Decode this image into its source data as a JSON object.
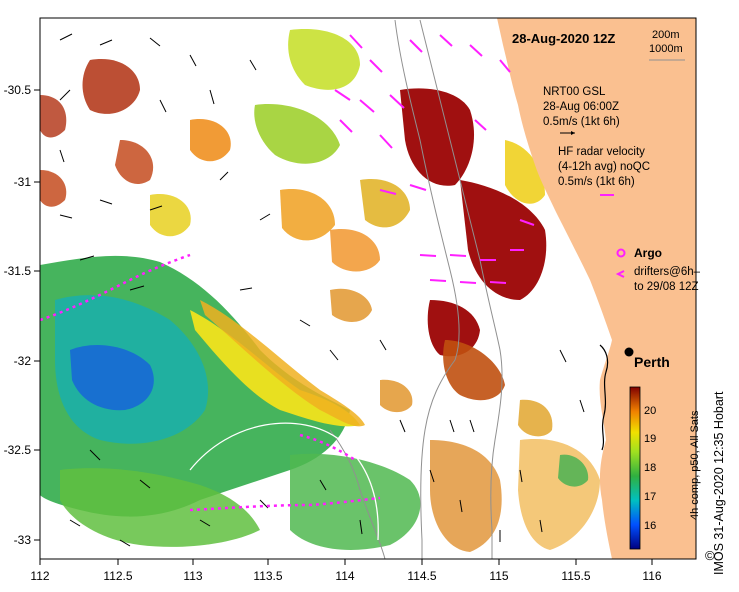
{
  "title": "28-Aug-2020 12Z",
  "depth_contours": [
    "200m",
    "1000m"
  ],
  "gsl_legend": {
    "line1": "NRT00 GSL",
    "line2": "28-Aug 06:00Z",
    "line3": "0.5m/s (1kt 6h)"
  },
  "hf_legend": {
    "line1": "HF radar velocity",
    "line2": "(4-12h avg) noQC",
    "line3": "0.5m/s (1kt 6h)"
  },
  "argo_label": "Argo",
  "drifters_label": {
    "line1": "drifters@6h–",
    "line2": "to 29/08 12Z"
  },
  "city_label": "Perth",
  "colorbar": {
    "ticks": [
      "16",
      "17",
      "18",
      "19",
      "20"
    ],
    "label": "4h comp, p50, All Sats"
  },
  "credit": "IMOS 31-Aug-2020 12:35 Hobart",
  "copyright_symbol": "©",
  "x_axis_labels": [
    "112",
    "112.5",
    "113",
    "113.5",
    "114",
    "114.5",
    "115",
    "115.5",
    "116"
  ],
  "y_axis_labels": [
    "-30.5",
    "-31",
    "-31.5",
    "-32",
    "-32.5",
    "-33"
  ],
  "colors": {
    "land": "#FAC090",
    "ocean": "#ffffff",
    "hf_vectors": "#ff20ff",
    "drifters": "#ff20ff",
    "sst_warm": "#990000",
    "sst_mid": "#FFD020",
    "sst_cool": "#30A040",
    "sst_cold": "#0000a0"
  }
}
